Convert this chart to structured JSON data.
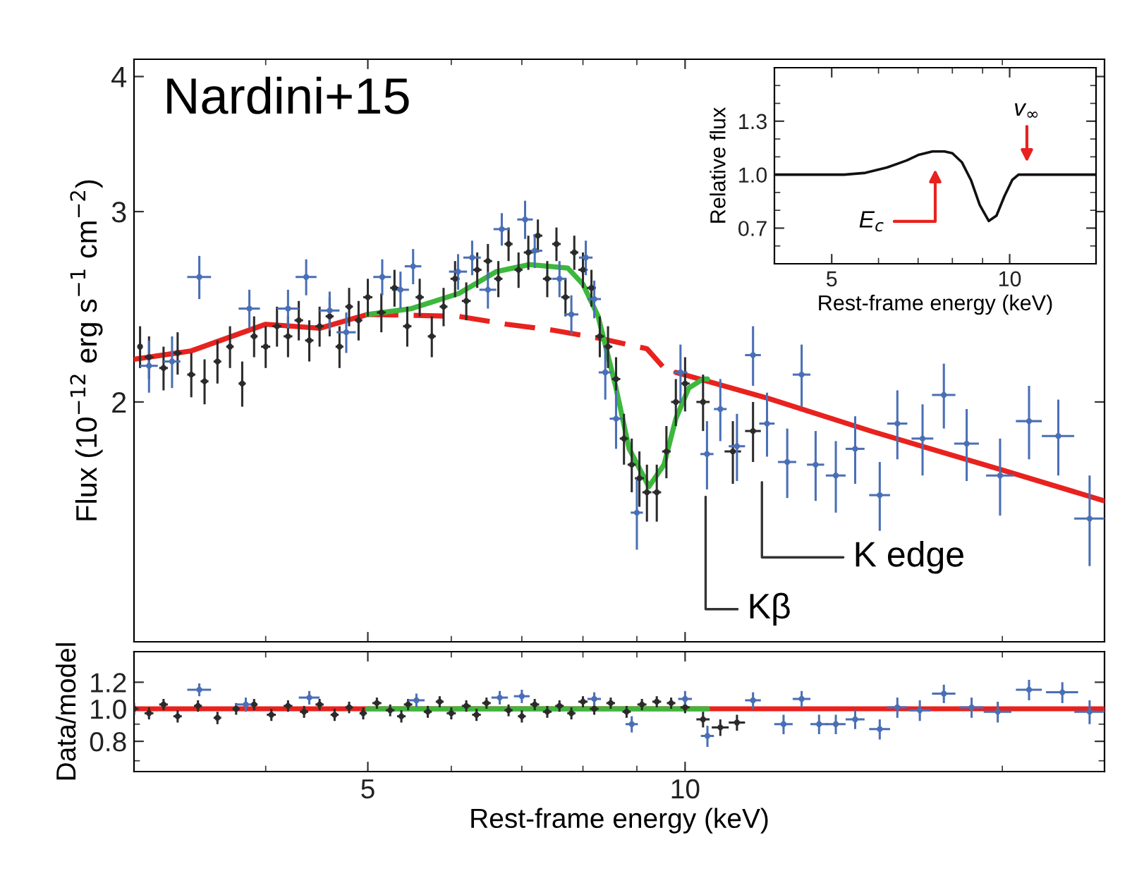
{
  "chart_data": [
    {
      "type": "scatter",
      "ylabel": "Flux (10$^{−12}$ erg s$^{−1}$ cm$^{−2}$)",
      "log": "xy",
      "xlim": [
        3,
        25
      ],
      "xticks": [
        5,
        10
      ],
      "ylim": [
        1.2,
        4.15
      ],
      "yticks": [
        2,
        3,
        4
      ],
      "tick_labels": "y",
      "grid": false,
      "legend": false,
      "annotations": [
        "Nardini+15",
        "Kβ",
        "K edge"
      ],
      "series": [
        {
          "color": "#2b2b2b",
          "x": [
            3.04,
            3.1,
            3.2,
            3.3,
            3.4,
            3.5,
            3.6,
            3.7,
            3.8,
            3.9,
            4.0,
            4.1,
            4.2,
            4.3,
            4.4,
            4.5,
            4.6,
            4.7,
            4.8,
            4.9,
            5.0,
            5.15,
            5.3,
            5.45,
            5.6,
            5.75,
            5.9,
            6.05,
            6.2,
            6.35,
            6.5,
            6.65,
            6.8,
            6.95,
            7.1,
            7.25,
            7.4,
            7.55,
            7.7,
            7.85,
            8.0,
            8.15,
            8.3,
            8.45,
            8.6,
            8.75,
            8.9,
            9.05,
            9.2,
            9.4,
            9.6,
            9.8,
            10.0,
            10.4,
            11.1,
            11.6
          ],
          "values": [
            2.25,
            2.2,
            2.15,
            2.22,
            2.12,
            2.09,
            2.18,
            2.25,
            2.08,
            2.3,
            2.25,
            2.35,
            2.3,
            2.38,
            2.28,
            2.35,
            2.4,
            2.25,
            2.45,
            2.38,
            2.5,
            2.42,
            2.55,
            2.35,
            2.5,
            2.3,
            2.45,
            2.6,
            2.48,
            2.65,
            2.7,
            2.6,
            2.8,
            2.65,
            2.75,
            2.85,
            2.6,
            2.8,
            2.5,
            2.75,
            2.65,
            2.55,
            2.3,
            2.25,
            2.1,
            1.85,
            1.75,
            1.7,
            1.65,
            1.65,
            1.8,
            2.0,
            2.08,
            2.0,
            1.8,
            1.88
          ],
          "errors": [
            0.1,
            0.1,
            0.1,
            0.1,
            0.1,
            0.1,
            0.1,
            0.1,
            0.1,
            0.1,
            0.1,
            0.1,
            0.1,
            0.1,
            0.1,
            0.1,
            0.1,
            0.1,
            0.1,
            0.1,
            0.1,
            0.1,
            0.1,
            0.1,
            0.1,
            0.1,
            0.1,
            0.1,
            0.1,
            0.1,
            0.1,
            0.1,
            0.1,
            0.1,
            0.1,
            0.1,
            0.1,
            0.1,
            0.1,
            0.1,
            0.1,
            0.1,
            0.1,
            0.1,
            0.1,
            0.1,
            0.1,
            0.1,
            0.1,
            0.1,
            0.1,
            0.1,
            0.12,
            0.12,
            0.12,
            0.12
          ],
          "xerrors": [
            null,
            0.03,
            0.03,
            0.03,
            0.03,
            0.03,
            0.03,
            0.03,
            0.03,
            0.03,
            0.04,
            0.04,
            0.04,
            0.04,
            0.04,
            0.04,
            0.04,
            0.04,
            0.04,
            0.04,
            0.05,
            0.05,
            0.05,
            0.05,
            0.05,
            0.05,
            0.05,
            0.06,
            0.06,
            0.06,
            0.06,
            0.06,
            0.06,
            0.06,
            0.07,
            0.07,
            0.07,
            0.07,
            0.07,
            0.07,
            0.08,
            0.08,
            0.08,
            0.08,
            0.08,
            0.08,
            0.08,
            0.09,
            0.09,
            0.09,
            0.09,
            0.1,
            0.1,
            0.15,
            0.2,
            0.2
          ]
        },
        {
          "color": "#4a6fb5",
          "x": [
            3.1,
            3.26,
            3.46,
            3.86,
            4.2,
            4.37,
            4.6,
            4.77,
            5.16,
            5.37,
            5.52,
            6.09,
            6.28,
            6.5,
            6.7,
            7.05,
            7.2,
            7.6,
            7.8,
            8.05,
            8.2,
            8.4,
            8.6,
            9.0,
            9.9,
            10.49,
            10.8,
            11.2,
            11.6,
            11.96,
            12.5,
            12.9,
            13.3,
            13.9,
            14.5,
            15.3,
            15.9,
            16.8,
            17.6,
            18.5,
            19.9,
            21.2,
            22.6,
            24.2
          ],
          "values": [
            2.16,
            2.18,
            2.61,
            2.44,
            2.44,
            2.61,
            2.43,
            2.32,
            2.61,
            2.54,
            2.67,
            2.64,
            2.72,
            2.54,
            2.89,
            2.95,
            2.76,
            2.6,
            2.41,
            2.72,
            2.49,
            2.13,
            1.93,
            1.58,
            2.13,
            1.79,
            1.97,
            1.82,
            2.21,
            1.91,
            1.76,
            2.12,
            1.75,
            1.71,
            1.81,
            1.64,
            1.91,
            1.85,
            2.03,
            1.83,
            1.71,
            1.92,
            1.86,
            1.56
          ],
          "errors": [
            0.12,
            0.12,
            0.12,
            0.1,
            0.1,
            0.1,
            0.1,
            0.1,
            0.1,
            0.1,
            0.1,
            0.1,
            0.1,
            0.1,
            0.1,
            0.12,
            0.1,
            0.1,
            0.1,
            0.1,
            0.1,
            0.12,
            0.12,
            0.12,
            0.13,
            0.13,
            0.13,
            0.13,
            0.14,
            0.13,
            0.13,
            0.14,
            0.13,
            0.13,
            0.13,
            0.12,
            0.14,
            0.14,
            0.14,
            0.14,
            0.14,
            0.15,
            0.15,
            0.15
          ],
          "xerrors": [
            0.06,
            0.06,
            0.09,
            0.09,
            0.1,
            0.1,
            0.1,
            0.1,
            0.1,
            0.1,
            0.1,
            0.12,
            0.12,
            0.12,
            0.12,
            0.12,
            0.12,
            0.12,
            0.12,
            0.12,
            0.12,
            0.12,
            0.12,
            0.12,
            0.15,
            0.15,
            0.15,
            0.2,
            0.2,
            0.2,
            0.25,
            0.25,
            0.25,
            0.3,
            0.3,
            0.35,
            0.35,
            0.4,
            0.45,
            0.5,
            0.6,
            0.6,
            0.8,
            0.8
          ]
        },
        {
          "type": "line",
          "color": "#e8221e",
          "line_style": "solid",
          "x": [
            3.0,
            3.4,
            4.0,
            4.5,
            5.0
          ],
          "values": [
            2.19,
            2.23,
            2.36,
            2.34,
            2.41
          ]
        },
        {
          "type": "line",
          "color": "#e8221e",
          "line_style": "dashed",
          "x": [
            5.0,
            6.1,
            6.77,
            7.5,
            8.3,
            9.2,
            9.55
          ],
          "values": [
            2.41,
            2.4,
            2.36,
            2.33,
            2.29,
            2.24,
            2.15
          ]
        },
        {
          "type": "line",
          "color": "#e8221e",
          "line_style": "solid",
          "x": [
            9.8,
            12,
            15,
            20,
            25
          ],
          "values": [
            2.13,
            2.015,
            1.88,
            1.73,
            1.62
          ]
        },
        {
          "type": "line",
          "color": "#3cb83c",
          "line_style": "solid",
          "x": [
            5.0,
            5.5,
            6.1,
            6.62,
            7.12,
            7.74,
            8.0,
            8.27,
            8.59,
            8.85,
            9.24,
            9.55,
            9.8,
            10.08,
            10.4,
            10.5
          ],
          "values": [
            2.41,
            2.44,
            2.52,
            2.64,
            2.68,
            2.66,
            2.57,
            2.4,
            2.07,
            1.81,
            1.67,
            1.75,
            1.93,
            2.06,
            2.1,
            2.1
          ]
        }
      ]
    },
    {
      "type": "line",
      "xlabel": "Rest-frame energy (keV)",
      "ylabel": "Relative flux",
      "log": "x",
      "xlim": [
        4,
        14
      ],
      "xticks": [
        5,
        10
      ],
      "ylim": [
        0.5,
        1.6
      ],
      "yticks": [
        {
          "value": 0.7,
          "label": "0.7"
        },
        {
          "value": 1.0,
          "label": "1.0"
        },
        {
          "value": 1.3,
          "label": "1.3"
        }
      ],
      "grid": false,
      "legend": false,
      "annotations": [
        "E$_{c}$",
        "v$_{∞}$"
      ],
      "series": [
        {
          "color": "#111111",
          "line_style": "solid",
          "x": [
            4.0,
            5.0,
            5.25,
            5.7,
            6.2,
            6.7,
            7.0,
            7.4,
            7.76,
            8.0,
            8.3,
            8.6,
            8.9,
            9.22,
            9.5,
            9.8,
            10.1,
            10.35,
            11,
            14
          ],
          "values": [
            1.0,
            1.0,
            1.0,
            1.01,
            1.04,
            1.08,
            1.11,
            1.13,
            1.13,
            1.12,
            1.07,
            0.97,
            0.83,
            0.74,
            0.77,
            0.88,
            0.97,
            1.0,
            1.0,
            1.0
          ]
        }
      ]
    },
    {
      "type": "scatter",
      "xlabel": "Rest-frame energy (keV)",
      "ylabel": "Data/model",
      "log": "xy",
      "xlim": [
        3,
        25
      ],
      "xticks": [
        5,
        10
      ],
      "ylim": [
        0.65,
        1.48
      ],
      "yticks": [
        {
          "value": 0.8,
          "label": "0.8"
        },
        {
          "value": 1.0,
          "label": "1.0"
        },
        {
          "value": 1.2,
          "label": "1.2"
        }
      ],
      "grid": false,
      "legend": false,
      "series": [
        {
          "type": "line",
          "color": "#e8221e",
          "line_style": "solid",
          "x": [
            3,
            25
          ],
          "values": [
            1.0,
            1.0
          ]
        },
        {
          "type": "line",
          "color": "#3cb83c",
          "line_style": "solid",
          "x": [
            5,
            10.5
          ],
          "values": [
            1.0,
            1.0
          ]
        },
        {
          "color": "#2b2b2b",
          "x": [
            3.0,
            3.1,
            3.2,
            3.3,
            3.45,
            3.6,
            3.75,
            3.9,
            4.05,
            4.2,
            4.35,
            4.5,
            4.65,
            4.8,
            4.95,
            5.1,
            5.25,
            5.38,
            5.46,
            5.7,
            5.85,
            6.0,
            6.2,
            6.34,
            6.48,
            6.8,
            7.0,
            7.2,
            7.4,
            7.6,
            7.8,
            8.0,
            8.2,
            8.5,
            8.8,
            9.1,
            9.4,
            9.7,
            10.0,
            10.4,
            10.8,
            11.2
          ],
          "values": [
            1.0,
            0.97,
            1.03,
            0.95,
            1.02,
            0.94,
            1.0,
            1.03,
            0.96,
            1.02,
            0.98,
            1.03,
            0.96,
            1.01,
            0.97,
            1.04,
            0.99,
            0.95,
            1.03,
            0.98,
            1.05,
            0.97,
            1.02,
            0.96,
            1.04,
            0.99,
            0.95,
            1.03,
            0.98,
            1.02,
            0.97,
            1.05,
            1.0,
            1.04,
            0.98,
            1.03,
            1.05,
            1.04,
            1.01,
            0.93,
            0.88,
            0.91
          ],
          "errors": [
            0.04,
            0.04,
            0.04,
            0.04,
            0.04,
            0.04,
            0.04,
            0.04,
            0.04,
            0.04,
            0.04,
            0.04,
            0.04,
            0.04,
            0.04,
            0.04,
            0.04,
            0.04,
            0.04,
            0.04,
            0.04,
            0.04,
            0.04,
            0.04,
            0.04,
            0.04,
            0.04,
            0.04,
            0.04,
            0.04,
            0.04,
            0.04,
            0.04,
            0.04,
            0.04,
            0.04,
            0.04,
            0.04,
            0.04,
            0.05,
            0.05,
            0.05
          ],
          "xerrors": [
            0.03,
            0.03,
            0.03,
            0.03,
            0.03,
            0.03,
            0.03,
            0.03,
            0.04,
            0.04,
            0.04,
            0.04,
            0.04,
            0.04,
            0.04,
            0.05,
            0.05,
            0.05,
            0.05,
            0.05,
            0.05,
            0.06,
            0.06,
            0.06,
            0.06,
            0.06,
            0.06,
            0.07,
            0.07,
            0.07,
            0.07,
            0.08,
            0.08,
            0.08,
            0.08,
            0.09,
            0.09,
            0.09,
            0.1,
            0.15,
            0.2,
            0.2
          ]
        },
        {
          "color": "#4a6fb5",
          "x": [
            3.46,
            3.83,
            4.4,
            5.56,
            6.67,
            7.0,
            8.2,
            8.9,
            10.0,
            10.5,
            11.6,
            12.4,
            12.9,
            13.4,
            13.9,
            14.5,
            15.3,
            15.9,
            16.7,
            17.6,
            18.7,
            19.8,
            21.2,
            22.8,
            24.2
          ],
          "values": [
            1.14,
            1.03,
            1.08,
            1.06,
            1.08,
            1.09,
            1.07,
            0.9,
            1.07,
            0.83,
            1.06,
            0.9,
            1.07,
            0.9,
            0.9,
            0.93,
            0.87,
            1.01,
            0.99,
            1.11,
            1.01,
            0.98,
            1.14,
            1.12,
            0.98
          ],
          "errors": [
            0.05,
            0.05,
            0.05,
            0.05,
            0.05,
            0.05,
            0.05,
            0.05,
            0.06,
            0.06,
            0.06,
            0.06,
            0.06,
            0.06,
            0.06,
            0.06,
            0.06,
            0.07,
            0.07,
            0.07,
            0.07,
            0.07,
            0.08,
            0.08,
            0.08
          ],
          "xerrors": [
            0.09,
            0.09,
            0.1,
            0.1,
            0.12,
            0.12,
            0.12,
            0.12,
            0.15,
            0.15,
            0.2,
            0.25,
            0.25,
            0.25,
            0.3,
            0.3,
            0.35,
            0.35,
            0.4,
            0.45,
            0.5,
            0.6,
            0.6,
            0.8,
            0.8
          ]
        }
      ]
    }
  ]
}
